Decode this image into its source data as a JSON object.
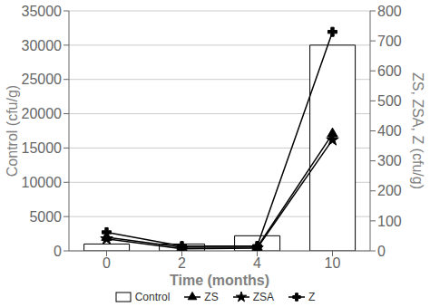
{
  "chart_data": {
    "type": "bar",
    "x_label": "Time (months)",
    "y_label": "Control (cfu/g)",
    "y2_label": "ZS, ZSA, Z  (cfu/g)",
    "categories": [
      "0",
      "2",
      "4",
      "10"
    ],
    "series": [
      {
        "name": "Control",
        "type": "bar",
        "color": "#ffffff",
        "values": [
          1000,
          1000,
          2200,
          30000
        ]
      },
      {
        "name": "ZS",
        "type": "line",
        "axis": "y2",
        "color": "#000000",
        "marker": "triangle",
        "values": [
          45,
          12,
          12,
          390
        ]
      },
      {
        "name": "ZSA",
        "type": "line",
        "axis": "y2",
        "color": "#000000",
        "marker": "star",
        "values": [
          40,
          7,
          9,
          370
        ]
      },
      {
        "name": "Z",
        "type": "line",
        "axis": "y2",
        "color": "#000000",
        "marker": "plus",
        "values": [
          62,
          16,
          16,
          730
        ]
      }
    ],
    "ylim": [
      0,
      35000
    ],
    "yticks": [
      0,
      5000,
      10000,
      15000,
      20000,
      25000,
      30000,
      35000
    ],
    "y2lim": [
      0,
      800
    ],
    "y2ticks": [
      0,
      100,
      200,
      300,
      400,
      500,
      600,
      700,
      800
    ],
    "grid": true,
    "legend": "bottom"
  }
}
